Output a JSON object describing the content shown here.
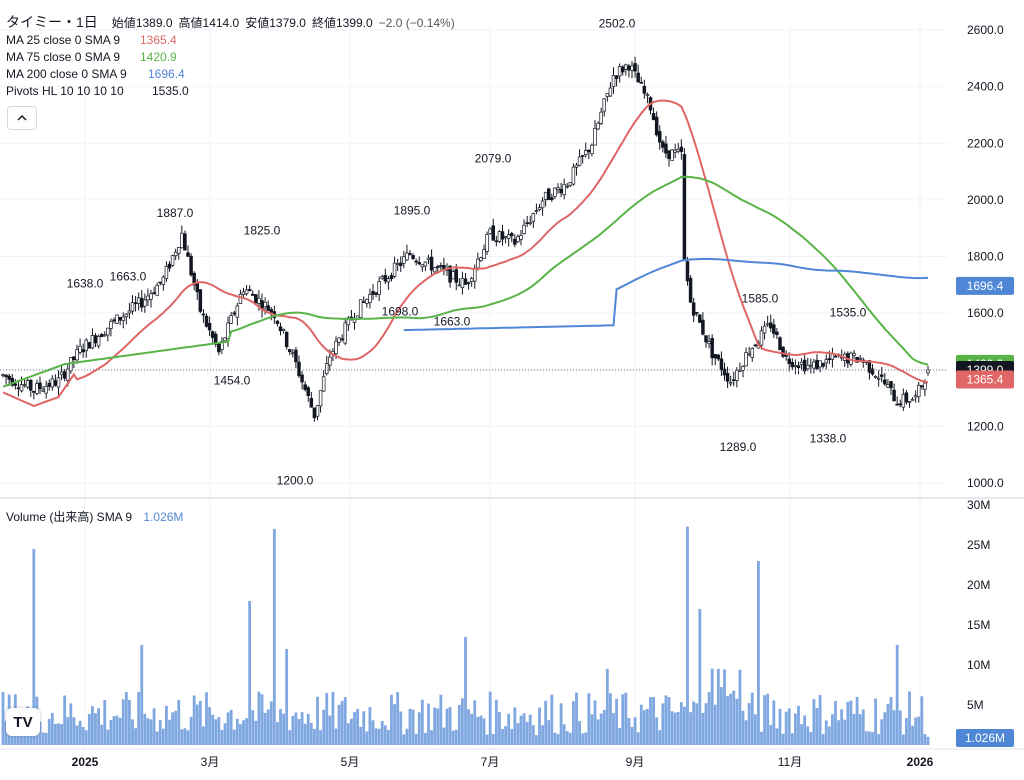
{
  "header": {
    "title": "タイミー・1日",
    "open_label": "始値",
    "open": "1389.0",
    "high_label": "高値",
    "high": "1414.0",
    "low_label": "安値",
    "low": "1379.0",
    "close_label": "終値",
    "close": "1399.0",
    "change": "−2.0 (−0.14%)"
  },
  "indicators": [
    {
      "label": "MA 25 close 0 SMA 9",
      "value": "1365.4",
      "color": "#e06666"
    },
    {
      "label": "MA 75 close 0 SMA 9",
      "value": "1420.9",
      "color": "#59b347"
    },
    {
      "label": "MA 200 close 0 SMA 9",
      "value": "1696.4",
      "color": "#4f86d6"
    },
    {
      "label": "Pivots HL 10 10 10 10",
      "value": "1535.0",
      "color": "#131722"
    }
  ],
  "collapse_icon": "chevron-up",
  "volume_legend": {
    "label": "Volume (出来高) SMA 9",
    "value": "1.026M",
    "color": "#4f86d6"
  },
  "colors": {
    "up": "#ffffff",
    "down": "#131722",
    "outline": "#131722",
    "ma25": "#e06666",
    "ma75": "#59b347",
    "ma200": "#4f86d6",
    "volume": "#7fa7e0",
    "grid": "#f0f3fa"
  },
  "chart_data": {
    "type": "candlestick",
    "price_axis": {
      "ticks": [
        "2600.0",
        "2400.0",
        "2200.0",
        "2000.0",
        "1800.0",
        "1600.0",
        "1400.0",
        "1200.0",
        "1000.0"
      ],
      "range": [
        960,
        2650
      ]
    },
    "volume_axis": {
      "ticks": [
        "30M",
        "25M",
        "20M",
        "15M",
        "10M",
        "5M"
      ],
      "range": [
        0,
        30000000
      ]
    },
    "time_axis": {
      "labels": [
        "2025",
        "3月",
        "5月",
        "7月",
        "9月",
        "11月",
        "2026"
      ]
    },
    "pivot_labels": [
      {
        "text": "1638.0",
        "value": 1638
      },
      {
        "text": "1663.0",
        "value": 1663
      },
      {
        "text": "1887.0",
        "value": 1887
      },
      {
        "text": "1825.0",
        "value": 1825
      },
      {
        "text": "1454.0",
        "value": 1454
      },
      {
        "text": "1200.0",
        "value": 1200
      },
      {
        "text": "1895.0",
        "value": 1895
      },
      {
        "text": "1698.0",
        "value": 1698
      },
      {
        "text": "1663.0",
        "value": 1663
      },
      {
        "text": "2079.0",
        "value": 2079
      },
      {
        "text": "2502.0",
        "value": 2502
      },
      {
        "text": "1585.0",
        "value": 1585
      },
      {
        "text": "1289.0",
        "value": 1289
      },
      {
        "text": "1535.0",
        "value": 1535
      },
      {
        "text": "1338.0",
        "value": 1338
      }
    ],
    "price_badges": [
      {
        "text": "1696.4",
        "value": 1696.4,
        "color": "#4f86d6"
      },
      {
        "text": "1420.9",
        "value": 1420.9,
        "color": "#59b347"
      },
      {
        "text": "1399.0",
        "value": 1399.0,
        "color": "#131722"
      },
      {
        "text": "1365.4",
        "value": 1365.4,
        "color": "#e06666"
      }
    ],
    "volume_badge": {
      "text": "1.026M",
      "value": 1026000,
      "color": "#4f86d6"
    },
    "last_close": 1399.0
  }
}
